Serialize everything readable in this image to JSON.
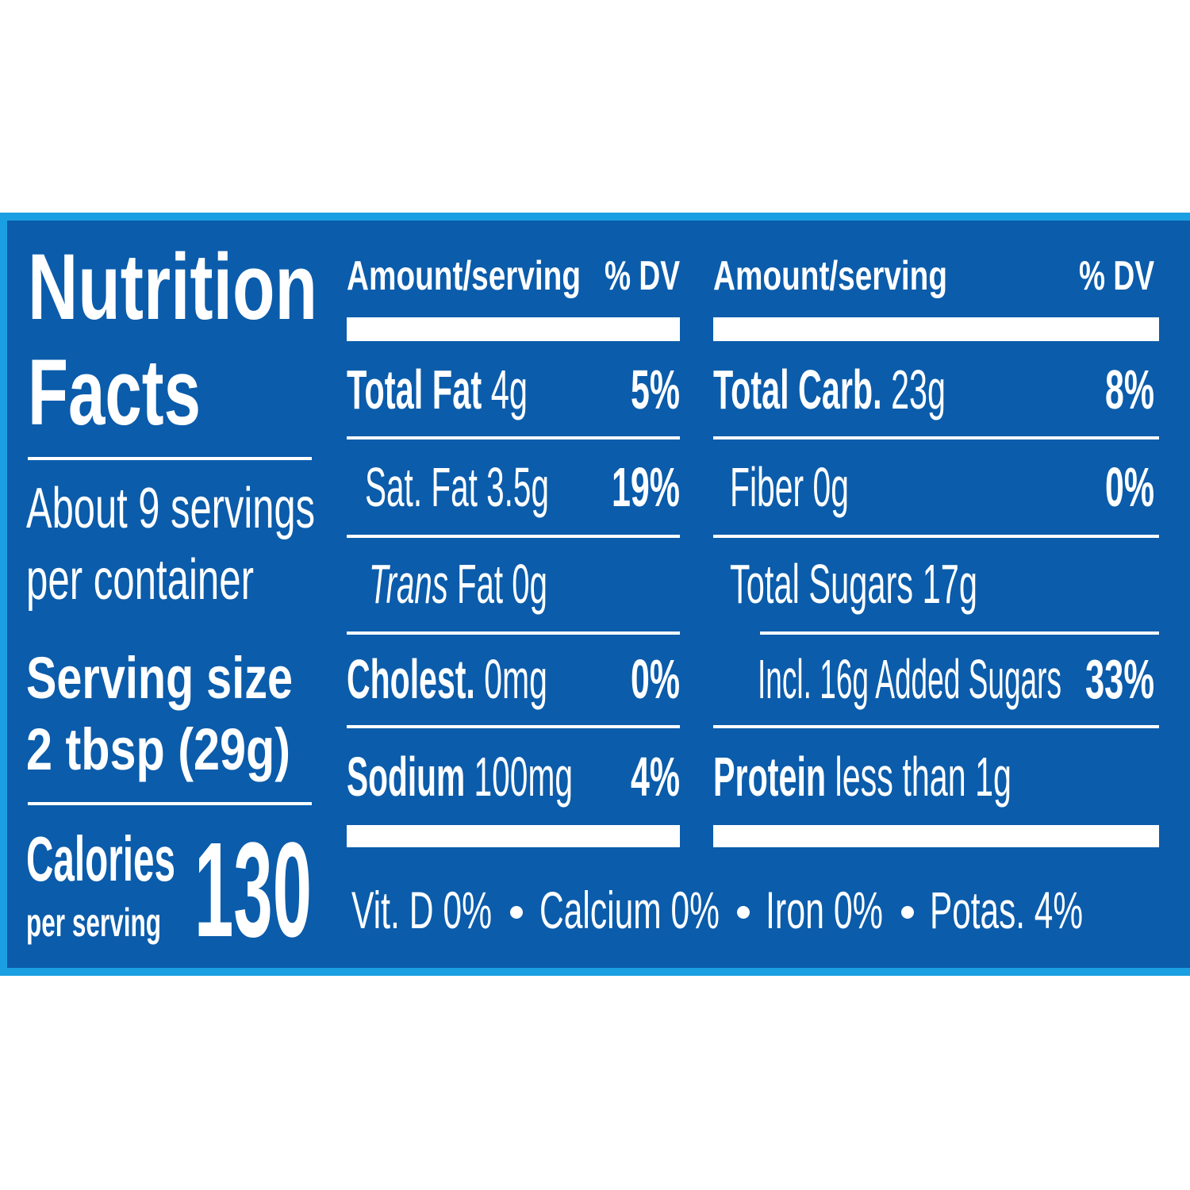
{
  "title": [
    "Nutrition",
    "Facts"
  ],
  "servings": [
    "About 9 servings",
    "per container"
  ],
  "serving_size": {
    "label": "Serving size",
    "value": "2 tbsp (29g)"
  },
  "calories": {
    "label": "Calories",
    "sublabel": "per serving",
    "value": "130"
  },
  "columns": [
    {
      "header_amount": "Amount/serving",
      "header_dv": "% DV",
      "rows": [
        {
          "name": "Total Fat",
          "amount": "4g",
          "dv": "5%"
        },
        {
          "name": "Sat. Fat",
          "amount": "3.5g",
          "dv": "19%"
        },
        {
          "name_italic": "Trans",
          "name": "Fat",
          "amount": "0g"
        },
        {
          "name": "Cholest.",
          "amount": "0mg",
          "dv": "0%"
        },
        {
          "name": "Sodium",
          "amount": "100mg",
          "dv": "4%"
        }
      ]
    },
    {
      "header_amount": "Amount/serving",
      "header_dv": "% DV",
      "rows": [
        {
          "name": "Total Carb.",
          "amount": "23g",
          "dv": "8%"
        },
        {
          "name": "Fiber",
          "amount": "0g",
          "dv": "0%"
        },
        {
          "name": "Total Sugars",
          "amount": "17g"
        },
        {
          "name": "Incl. 16g Added Sugars",
          "dv": "33%"
        },
        {
          "name": "Protein",
          "amount": "less than 1g"
        }
      ]
    }
  ],
  "vitamins": [
    "Vit. D 0%",
    "Calcium 0%",
    "Iron 0%",
    "Potas. 4%"
  ]
}
